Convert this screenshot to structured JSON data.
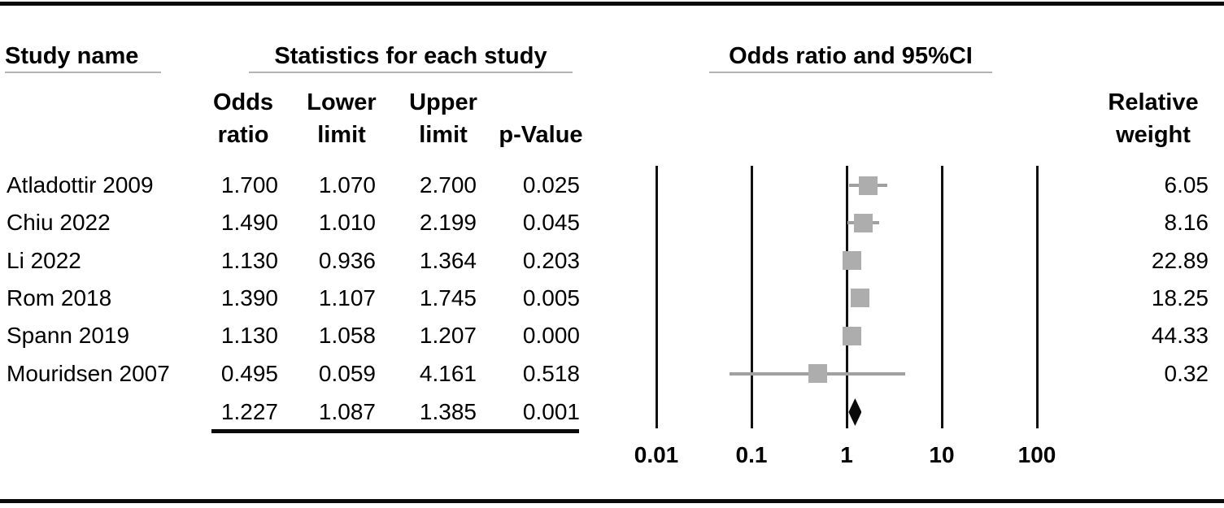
{
  "header": {
    "study_name": "Study name",
    "statistics": "Statistics for each study",
    "or_ci": "Odds ratio and 95%CI"
  },
  "subheaders": {
    "odds_ratio_line1": "Odds",
    "odds_ratio_line2": "ratio",
    "lower_line1": "Lower",
    "lower_line2": "limit",
    "upper_line1": "Upper",
    "upper_line2": "limit",
    "p_value": "p-Value",
    "weight_line1": "Relative",
    "weight_line2": "weight"
  },
  "studies": [
    {
      "name": "Atladottir 2009",
      "odds_ratio": "1.700",
      "lower": "1.070",
      "upper": "2.700",
      "p": "0.025",
      "weight": "6.05"
    },
    {
      "name": "Chiu 2022",
      "odds_ratio": "1.490",
      "lower": "1.010",
      "upper": "2.199",
      "p": "0.045",
      "weight": "8.16"
    },
    {
      "name": "Li 2022",
      "odds_ratio": "1.130",
      "lower": "0.936",
      "upper": "1.364",
      "p": "0.203",
      "weight": "22.89"
    },
    {
      "name": "Rom 2018",
      "odds_ratio": "1.390",
      "lower": "1.107",
      "upper": "1.745",
      "p": "0.005",
      "weight": "18.25"
    },
    {
      "name": "Spann 2019",
      "odds_ratio": "1.130",
      "lower": "1.058",
      "upper": "1.207",
      "p": "0.000",
      "weight": "44.33"
    },
    {
      "name": "Mouridsen 2007",
      "odds_ratio": "0.495",
      "lower": "0.059",
      "upper": "4.161",
      "p": "0.518",
      "weight": "0.32"
    }
  ],
  "summary": {
    "odds_ratio": "1.227",
    "lower": "1.087",
    "upper": "1.385",
    "p": "0.001"
  },
  "axis": {
    "ticks": [
      "0.01",
      "0.1",
      "1",
      "10",
      "100"
    ]
  },
  "colors": {
    "marker_gray": "#adadad",
    "whisker_gray": "#a0a0a0",
    "diamond_black": "#0a0a0a",
    "underline_gray": "#b3b3b3"
  },
  "chart_data": {
    "type": "scatter",
    "variant": "forest_plot",
    "title": "Odds ratio and 95%CI",
    "x_scale": "log10",
    "x_ticks": [
      0.01,
      0.1,
      1,
      10,
      100
    ],
    "xlim": [
      0.01,
      100
    ],
    "grid": "vertical-lines-at-ticks",
    "series": [
      {
        "name": "Atladottir 2009",
        "odds_ratio": 1.7,
        "ci_lower": 1.07,
        "ci_upper": 2.7,
        "p_value": 0.025,
        "relative_weight": 6.05
      },
      {
        "name": "Chiu 2022",
        "odds_ratio": 1.49,
        "ci_lower": 1.01,
        "ci_upper": 2.199,
        "p_value": 0.045,
        "relative_weight": 8.16
      },
      {
        "name": "Li 2022",
        "odds_ratio": 1.13,
        "ci_lower": 0.936,
        "ci_upper": 1.364,
        "p_value": 0.203,
        "relative_weight": 22.89
      },
      {
        "name": "Rom 2018",
        "odds_ratio": 1.39,
        "ci_lower": 1.107,
        "ci_upper": 1.745,
        "p_value": 0.005,
        "relative_weight": 18.25
      },
      {
        "name": "Spann 2019",
        "odds_ratio": 1.13,
        "ci_lower": 1.058,
        "ci_upper": 1.207,
        "p_value": 0.0,
        "relative_weight": 44.33
      },
      {
        "name": "Mouridsen 2007",
        "odds_ratio": 0.495,
        "ci_lower": 0.059,
        "ci_upper": 4.161,
        "p_value": 0.518,
        "relative_weight": 0.32
      }
    ],
    "overall": {
      "odds_ratio": 1.227,
      "ci_lower": 1.087,
      "ci_upper": 1.385,
      "p_value": 0.001,
      "marker": "black-diamond"
    }
  }
}
